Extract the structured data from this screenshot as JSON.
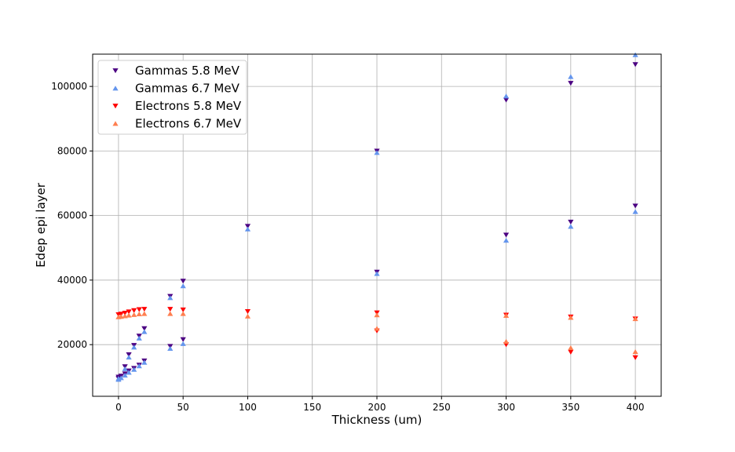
{
  "chart_data": {
    "type": "scatter",
    "xlabel": "Thickness (um)",
    "ylabel": "Edep epi layer",
    "xlim": [
      -20,
      420
    ],
    "ylim": [
      4000,
      110000
    ],
    "x_ticks": [
      0,
      50,
      100,
      150,
      200,
      250,
      300,
      350,
      400
    ],
    "y_ticks": [
      20000,
      40000,
      60000,
      80000,
      100000
    ],
    "grid": true,
    "legend_position": "top-left",
    "series": [
      {
        "name": "Gammas 5.8 MeV",
        "marker": "triangle-down",
        "color": "#4b0082",
        "points": [
          [
            0,
            10000
          ],
          [
            2,
            10300
          ],
          [
            5,
            13200
          ],
          [
            8,
            16900
          ],
          [
            12,
            19800
          ],
          [
            16,
            22700
          ],
          [
            20,
            25000
          ],
          [
            0,
            9600
          ],
          [
            5,
            11000
          ],
          [
            8,
            11900
          ],
          [
            12,
            12700
          ],
          [
            16,
            13700
          ],
          [
            20,
            15000
          ],
          [
            40,
            35000
          ],
          [
            50,
            39700
          ],
          [
            100,
            56700
          ],
          [
            200,
            80000
          ],
          [
            300,
            95800
          ],
          [
            350,
            101000
          ],
          [
            400,
            106800
          ],
          [
            40,
            19500
          ],
          [
            50,
            21600
          ],
          [
            200,
            42500
          ],
          [
            300,
            54000
          ],
          [
            350,
            58000
          ],
          [
            400,
            63000
          ]
        ]
      },
      {
        "name": "Gammas 6.7 MeV",
        "marker": "triangle-up",
        "color": "#6495ed",
        "points": [
          [
            0,
            9500
          ],
          [
            2,
            9700
          ],
          [
            5,
            12500
          ],
          [
            8,
            16100
          ],
          [
            12,
            19200
          ],
          [
            16,
            22000
          ],
          [
            20,
            24000
          ],
          [
            0,
            9200
          ],
          [
            5,
            10500
          ],
          [
            8,
            11400
          ],
          [
            12,
            12300
          ],
          [
            16,
            13400
          ],
          [
            20,
            14500
          ],
          [
            40,
            34500
          ],
          [
            50,
            38200
          ],
          [
            100,
            55800
          ],
          [
            200,
            79500
          ],
          [
            300,
            97000
          ],
          [
            350,
            103000
          ],
          [
            400,
            109800
          ],
          [
            40,
            18800
          ],
          [
            50,
            20300
          ],
          [
            200,
            42000
          ],
          [
            300,
            52300
          ],
          [
            350,
            56600
          ],
          [
            400,
            61200
          ]
        ]
      },
      {
        "name": "Electrons 5.8 MeV",
        "marker": "triangle-down",
        "color": "#ff0000",
        "points": [
          [
            0,
            29300
          ],
          [
            2,
            29500
          ],
          [
            5,
            29800
          ],
          [
            8,
            30200
          ],
          [
            12,
            30600
          ],
          [
            16,
            30900
          ],
          [
            20,
            31000
          ],
          [
            40,
            31000
          ],
          [
            50,
            30800
          ],
          [
            100,
            30300
          ],
          [
            200,
            29900
          ],
          [
            300,
            29200
          ],
          [
            350,
            28600
          ],
          [
            400,
            28000
          ],
          [
            200,
            24300
          ],
          [
            300,
            20000
          ],
          [
            350,
            17700
          ],
          [
            400,
            16000
          ]
        ]
      },
      {
        "name": "Electrons 6.7 MeV",
        "marker": "triangle-up",
        "color": "#ff7f50",
        "points": [
          [
            0,
            28600
          ],
          [
            2,
            28700
          ],
          [
            5,
            28900
          ],
          [
            8,
            29100
          ],
          [
            12,
            29300
          ],
          [
            16,
            29500
          ],
          [
            20,
            29600
          ],
          [
            40,
            29600
          ],
          [
            50,
            29600
          ],
          [
            100,
            28800
          ],
          [
            200,
            29200
          ],
          [
            300,
            29000
          ],
          [
            350,
            28400
          ],
          [
            400,
            28000
          ],
          [
            200,
            25000
          ],
          [
            300,
            21000
          ],
          [
            350,
            19000
          ],
          [
            400,
            17800
          ]
        ]
      }
    ]
  }
}
